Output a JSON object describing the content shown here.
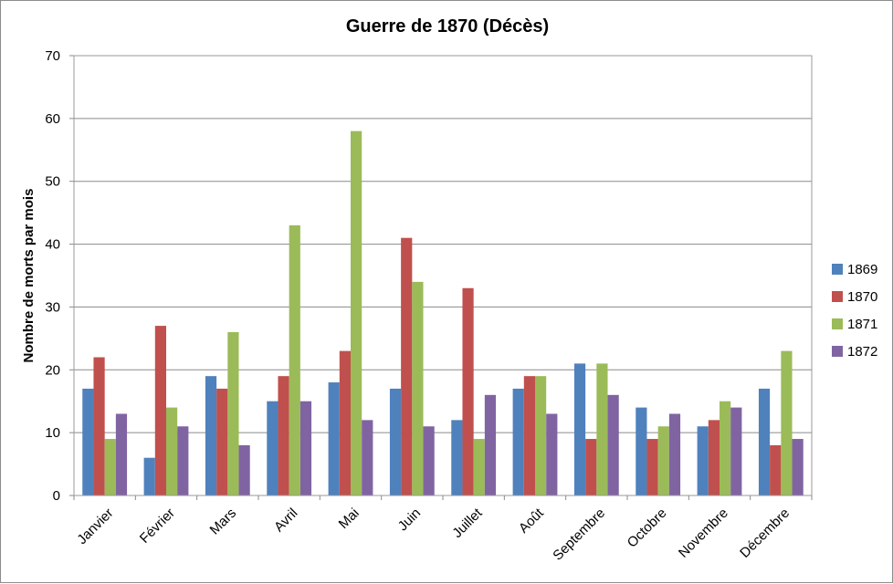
{
  "chart_data": {
    "type": "bar",
    "title": "Guerre de 1870 (Décès)",
    "xlabel": "",
    "ylabel": "Nombre de morts par mois",
    "ylim": [
      0,
      70
    ],
    "yticks": [
      "0",
      "10",
      "20",
      "30",
      "40",
      "50",
      "60",
      "70"
    ],
    "grid": true,
    "legend_position": "right",
    "categories": [
      "Janvier",
      "Février",
      "Mars",
      "Avril",
      "Mai",
      "Juin",
      "Juillet",
      "Août",
      "Septembre",
      "Octobre",
      "Novembre",
      "Décembre"
    ],
    "series": [
      {
        "name": "1869",
        "color": "#4F81BD",
        "values": [
          17,
          6,
          19,
          15,
          18,
          17,
          12,
          17,
          21,
          14,
          11,
          17
        ]
      },
      {
        "name": "1870",
        "color": "#C0504D",
        "values": [
          22,
          27,
          17,
          19,
          23,
          41,
          33,
          19,
          9,
          9,
          12,
          8
        ]
      },
      {
        "name": "1871",
        "color": "#9BBB59",
        "values": [
          9,
          14,
          26,
          43,
          58,
          34,
          9,
          19,
          21,
          11,
          15,
          23
        ]
      },
      {
        "name": "1872",
        "color": "#8064A2",
        "values": [
          13,
          11,
          8,
          15,
          12,
          11,
          16,
          13,
          16,
          13,
          14,
          9
        ]
      }
    ]
  }
}
